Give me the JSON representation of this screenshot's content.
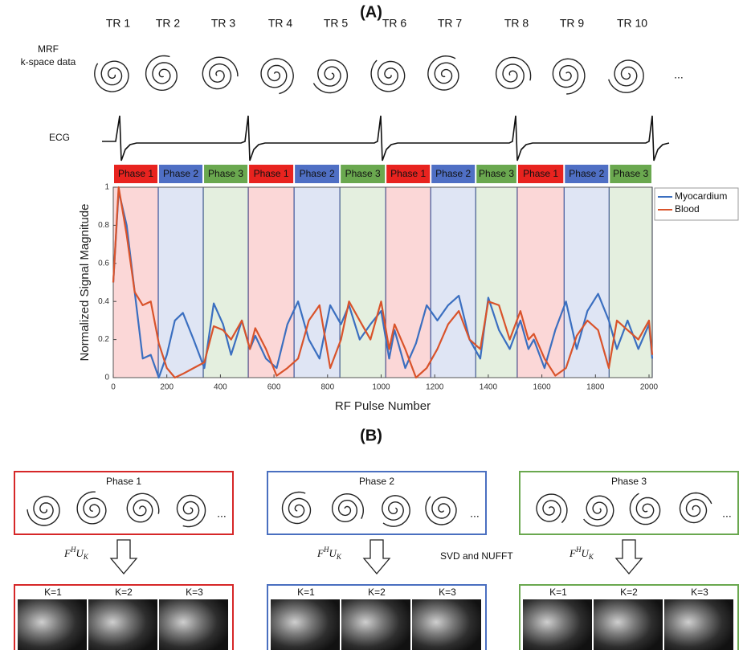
{
  "panel_a_label": "(A)",
  "mrf_label": [
    "MRF",
    "k-space data"
  ],
  "tr_labels": [
    "TR 1",
    "TR 2",
    "TR 3",
    "TR 4",
    "TR 5",
    "TR 6",
    "TR 7",
    "TR 8",
    "TR 9",
    "TR 10"
  ],
  "ellipsis": "...",
  "ecg_label": "ECG",
  "chart_data": {
    "type": "line",
    "xlabel": "RF Pulse Number",
    "ylabel": "Normalized Signal Magnitude",
    "xlim": [
      0,
      2012
    ],
    "ylim": [
      0,
      1
    ],
    "xticks": [
      0,
      200,
      400,
      600,
      800,
      1000,
      1200,
      1400,
      1600,
      1800,
      2000
    ],
    "yticks": [
      0,
      0.2,
      0.4,
      0.6,
      0.8,
      1
    ],
    "legend": "top-right",
    "phase_bands": [
      {
        "label": "Phase 1",
        "start": 0,
        "end": 168,
        "color": "#e8231f"
      },
      {
        "label": "Phase 2",
        "start": 168,
        "end": 336,
        "color": "#4f6fc4"
      },
      {
        "label": "Phase 3",
        "start": 336,
        "end": 504,
        "color": "#6aa84f"
      },
      {
        "label": "Phase 1",
        "start": 504,
        "end": 675,
        "color": "#e8231f"
      },
      {
        "label": "Phase 2",
        "start": 675,
        "end": 846,
        "color": "#4f6fc4"
      },
      {
        "label": "Phase 3",
        "start": 846,
        "end": 1017,
        "color": "#6aa84f"
      },
      {
        "label": "Phase 1",
        "start": 1017,
        "end": 1185,
        "color": "#e8231f"
      },
      {
        "label": "Phase 2",
        "start": 1185,
        "end": 1353,
        "color": "#4f6fc4"
      },
      {
        "label": "Phase 3",
        "start": 1353,
        "end": 1508,
        "color": "#6aa84f"
      },
      {
        "label": "Phase 1",
        "start": 1508,
        "end": 1683,
        "color": "#e8231f"
      },
      {
        "label": "Phase 2",
        "start": 1683,
        "end": 1851,
        "color": "#4f6fc4"
      },
      {
        "label": "Phase 3",
        "start": 1851,
        "end": 2012,
        "color": "#6aa84f"
      }
    ],
    "x": [
      0,
      20,
      50,
      80,
      110,
      140,
      170,
      200,
      230,
      260,
      300,
      340,
      375,
      410,
      440,
      480,
      510,
      530,
      570,
      610,
      650,
      690,
      730,
      770,
      810,
      850,
      880,
      920,
      960,
      1000,
      1030,
      1050,
      1090,
      1130,
      1170,
      1210,
      1250,
      1290,
      1330,
      1370,
      1400,
      1440,
      1480,
      1520,
      1550,
      1570,
      1610,
      1650,
      1690,
      1730,
      1770,
      1810,
      1850,
      1880,
      1920,
      1960,
      2000,
      2012
    ],
    "series": [
      {
        "name": "Myocardium",
        "color": "#3b6fc0",
        "values": [
          0.5,
          0.98,
          0.8,
          0.45,
          0.1,
          0.12,
          0.0,
          0.12,
          0.3,
          0.34,
          0.2,
          0.05,
          0.39,
          0.28,
          0.12,
          0.3,
          0.15,
          0.22,
          0.1,
          0.05,
          0.28,
          0.4,
          0.2,
          0.1,
          0.38,
          0.28,
          0.38,
          0.2,
          0.28,
          0.35,
          0.1,
          0.25,
          0.05,
          0.18,
          0.38,
          0.3,
          0.38,
          0.43,
          0.2,
          0.1,
          0.42,
          0.25,
          0.15,
          0.3,
          0.15,
          0.2,
          0.05,
          0.25,
          0.4,
          0.15,
          0.35,
          0.44,
          0.3,
          0.15,
          0.3,
          0.15,
          0.28,
          0.1
        ]
      },
      {
        "name": "Blood",
        "color": "#d9532b",
        "values": [
          0.5,
          1.0,
          0.75,
          0.45,
          0.38,
          0.4,
          0.18,
          0.05,
          0.0,
          0.02,
          0.05,
          0.08,
          0.27,
          0.25,
          0.2,
          0.3,
          0.15,
          0.26,
          0.15,
          0.01,
          0.05,
          0.1,
          0.3,
          0.38,
          0.05,
          0.2,
          0.4,
          0.3,
          0.2,
          0.4,
          0.15,
          0.28,
          0.15,
          0.0,
          0.05,
          0.15,
          0.28,
          0.35,
          0.2,
          0.15,
          0.4,
          0.38,
          0.2,
          0.35,
          0.2,
          0.23,
          0.1,
          0.01,
          0.05,
          0.22,
          0.3,
          0.25,
          0.05,
          0.3,
          0.25,
          0.2,
          0.3,
          0.12
        ]
      }
    ]
  },
  "panel_b_label": "(B)",
  "method_label": "SVD and NUFFT",
  "panels": [
    {
      "title": "Phase 1",
      "color": "#d62728",
      "operator": {
        "base": "F",
        "sup": "H",
        "base2": "U",
        "sub": "K"
      },
      "k_labels": [
        "K=1",
        "K=2",
        "K=3"
      ]
    },
    {
      "title": "Phase 2",
      "color": "#4a6fc0",
      "operator": {
        "base": "F",
        "sup": "H",
        "base2": "U",
        "sub": "K"
      },
      "k_labels": [
        "K=1",
        "K=2",
        "K=3"
      ]
    },
    {
      "title": "Phase 3",
      "color": "#6aa84f",
      "operator": {
        "base": "F",
        "sup": "H",
        "base2": "U",
        "sub": "K"
      },
      "k_labels": [
        "K=1",
        "K=2",
        "K=3"
      ]
    }
  ]
}
